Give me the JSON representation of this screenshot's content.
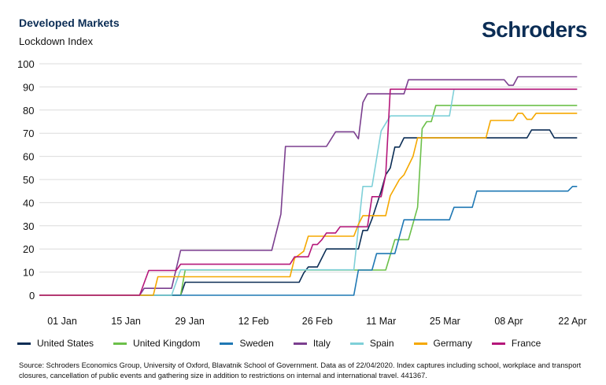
{
  "header": {
    "title": "Developed Markets",
    "subtitle": "Lockdown Index",
    "logo": "Schroders"
  },
  "footer": {
    "source": "Source: Schroders Economics Group, University of Oxford, Blavatnik School of Government. Data as of 22/04/2020. Index captures including school, workplace and transport closures, cancellation of public events and gathering size in addition to restrictions on internal and international travel. 441367."
  },
  "chart_data": {
    "type": "line",
    "title": "Developed Markets",
    "ylabel": "Lockdown Index",
    "ylim": [
      0,
      100
    ],
    "yticks": [
      0,
      10,
      20,
      30,
      40,
      50,
      60,
      70,
      80,
      90,
      100
    ],
    "xlim": [
      "2019-12-27",
      "2020-04-23"
    ],
    "xticks": [
      {
        "date": "2020-01-01",
        "label": "01 Jan"
      },
      {
        "date": "2020-01-15",
        "label": "15 Jan"
      },
      {
        "date": "2020-01-29",
        "label": "29 Jan"
      },
      {
        "date": "2020-02-12",
        "label": "12 Feb"
      },
      {
        "date": "2020-02-26",
        "label": "26 Feb"
      },
      {
        "date": "2020-03-11",
        "label": "11 Mar"
      },
      {
        "date": "2020-03-25",
        "label": "25 Mar"
      },
      {
        "date": "2020-04-08",
        "label": "08 Apr"
      },
      {
        "date": "2020-04-22",
        "label": "22 Apr"
      }
    ],
    "grid": "horizontal",
    "legend": "bottom",
    "series": [
      {
        "name": "United States",
        "color": "#0b2d55",
        "points": [
          [
            "2019-12-27",
            0
          ],
          [
            "2020-01-27",
            0
          ],
          [
            "2020-01-28",
            5.6
          ],
          [
            "2020-02-22",
            5.6
          ],
          [
            "2020-02-23",
            9.6
          ],
          [
            "2020-02-24",
            12.2
          ],
          [
            "2020-02-26",
            12.2
          ],
          [
            "2020-02-28",
            20
          ],
          [
            "2020-03-06",
            20
          ],
          [
            "2020-03-07",
            28
          ],
          [
            "2020-03-08",
            28
          ],
          [
            "2020-03-09",
            33
          ],
          [
            "2020-03-11",
            45
          ],
          [
            "2020-03-12",
            52
          ],
          [
            "2020-03-13",
            55
          ],
          [
            "2020-03-14",
            64
          ],
          [
            "2020-03-15",
            64
          ],
          [
            "2020-03-16",
            68
          ],
          [
            "2020-04-12",
            68
          ],
          [
            "2020-04-13",
            71.4
          ],
          [
            "2020-04-17",
            71.4
          ],
          [
            "2020-04-18",
            68
          ],
          [
            "2020-04-23",
            68
          ]
        ]
      },
      {
        "name": "United Kingdom",
        "color": "#6cc04a",
        "points": [
          [
            "2019-12-27",
            0
          ],
          [
            "2020-01-27",
            0
          ],
          [
            "2020-01-28",
            10.9
          ],
          [
            "2020-03-12",
            10.9
          ],
          [
            "2020-03-14",
            24
          ],
          [
            "2020-03-17",
            24
          ],
          [
            "2020-03-19",
            38
          ],
          [
            "2020-03-20",
            72
          ],
          [
            "2020-03-21",
            75
          ],
          [
            "2020-03-22",
            75
          ],
          [
            "2020-03-23",
            82
          ],
          [
            "2020-04-23",
            82
          ]
        ]
      },
      {
        "name": "Sweden",
        "color": "#1f78b4",
        "points": [
          [
            "2019-12-27",
            0
          ],
          [
            "2020-03-05",
            0
          ],
          [
            "2020-03-06",
            10.9
          ],
          [
            "2020-03-09",
            10.9
          ],
          [
            "2020-03-10",
            18
          ],
          [
            "2020-03-14",
            18
          ],
          [
            "2020-03-16",
            32.6
          ],
          [
            "2020-03-26",
            32.6
          ],
          [
            "2020-03-27",
            38
          ],
          [
            "2020-03-31",
            38
          ],
          [
            "2020-04-01",
            45
          ],
          [
            "2020-04-21",
            45
          ],
          [
            "2020-04-22",
            47
          ],
          [
            "2020-04-23",
            47
          ]
        ]
      },
      {
        "name": "Italy",
        "color": "#7b3f8f",
        "points": [
          [
            "2019-12-27",
            0
          ],
          [
            "2020-01-18",
            0
          ],
          [
            "2020-01-19",
            3
          ],
          [
            "2020-01-25",
            3
          ],
          [
            "2020-01-27",
            19.4
          ],
          [
            "2020-02-16",
            19.4
          ],
          [
            "2020-02-18",
            35
          ],
          [
            "2020-02-19",
            64.3
          ],
          [
            "2020-02-28",
            64.3
          ],
          [
            "2020-03-01",
            70.6
          ],
          [
            "2020-03-05",
            70.6
          ],
          [
            "2020-03-06",
            67.6
          ],
          [
            "2020-03-07",
            83.3
          ],
          [
            "2020-03-08",
            87
          ],
          [
            "2020-03-16",
            87
          ],
          [
            "2020-03-17",
            93.1
          ],
          [
            "2020-04-07",
            93.1
          ],
          [
            "2020-04-08",
            90.7
          ],
          [
            "2020-04-09",
            90.7
          ],
          [
            "2020-04-10",
            94.4
          ],
          [
            "2020-04-23",
            94.4
          ]
        ]
      },
      {
        "name": "Spain",
        "color": "#7fd0d8",
        "points": [
          [
            "2019-12-27",
            0
          ],
          [
            "2020-01-25",
            0
          ],
          [
            "2020-01-27",
            11
          ],
          [
            "2020-03-05",
            11
          ],
          [
            "2020-03-07",
            47
          ],
          [
            "2020-03-09",
            47
          ],
          [
            "2020-03-11",
            71
          ],
          [
            "2020-03-13",
            77.5
          ],
          [
            "2020-03-26",
            77.5
          ],
          [
            "2020-03-27",
            89
          ],
          [
            "2020-04-23",
            89
          ]
        ]
      },
      {
        "name": "Germany",
        "color": "#f5a800",
        "points": [
          [
            "2019-12-27",
            0
          ],
          [
            "2020-01-21",
            0
          ],
          [
            "2020-01-22",
            8
          ],
          [
            "2020-02-20",
            8
          ],
          [
            "2020-02-21",
            16
          ],
          [
            "2020-02-23",
            19
          ],
          [
            "2020-02-24",
            25.5
          ],
          [
            "2020-03-05",
            25.5
          ],
          [
            "2020-03-06",
            30.6
          ],
          [
            "2020-03-07",
            34.4
          ],
          [
            "2020-03-12",
            34.4
          ],
          [
            "2020-03-13",
            43
          ],
          [
            "2020-03-15",
            50
          ],
          [
            "2020-03-16",
            52
          ],
          [
            "2020-03-18",
            60
          ],
          [
            "2020-03-19",
            68
          ],
          [
            "2020-04-03",
            68
          ],
          [
            "2020-04-04",
            75.5
          ],
          [
            "2020-04-09",
            75.5
          ],
          [
            "2020-04-10",
            78.6
          ],
          [
            "2020-04-11",
            78.6
          ],
          [
            "2020-04-12",
            76
          ],
          [
            "2020-04-13",
            76
          ],
          [
            "2020-04-14",
            78.6
          ],
          [
            "2020-04-23",
            78.6
          ]
        ]
      },
      {
        "name": "France",
        "color": "#b5177a",
        "points": [
          [
            "2019-12-27",
            0
          ],
          [
            "2020-01-18",
            0
          ],
          [
            "2020-01-20",
            10.7
          ],
          [
            "2020-01-26",
            10.7
          ],
          [
            "2020-01-27",
            13.4
          ],
          [
            "2020-02-20",
            13.4
          ],
          [
            "2020-02-21",
            16.6
          ],
          [
            "2020-02-24",
            16.6
          ],
          [
            "2020-02-25",
            21.9
          ],
          [
            "2020-02-26",
            21.9
          ],
          [
            "2020-02-27",
            24
          ],
          [
            "2020-02-28",
            26.9
          ],
          [
            "2020-03-01",
            26.9
          ],
          [
            "2020-03-02",
            29.6
          ],
          [
            "2020-03-08",
            29.6
          ],
          [
            "2020-03-09",
            42.6
          ],
          [
            "2020-03-11",
            42.6
          ],
          [
            "2020-03-12",
            52
          ],
          [
            "2020-03-13",
            89
          ],
          [
            "2020-04-23",
            89
          ]
        ]
      }
    ]
  }
}
